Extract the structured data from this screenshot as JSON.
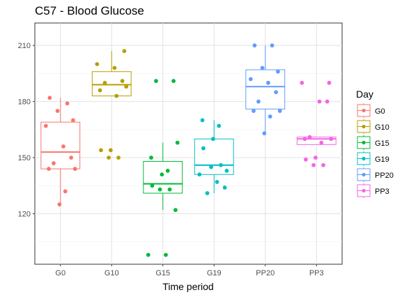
{
  "chart_data": {
    "type": "boxplot",
    "title": "C57 - Blood Glucose",
    "xlabel": "Time period",
    "ylabel": "",
    "categories": [
      "G0",
      "G10",
      "G15",
      "G19",
      "PP20",
      "PP3"
    ],
    "y_ticks": [
      120,
      150,
      180,
      210
    ],
    "ylim": [
      93,
      222
    ],
    "grid": true,
    "legend": {
      "title": "Day",
      "position": "right"
    },
    "series": [
      {
        "name": "G0",
        "color": "#F8766D",
        "box": {
          "min": 125,
          "q1": 144,
          "median": 153,
          "q3": 169,
          "max": 182
        },
        "points": [
          182,
          179,
          175,
          170,
          167,
          156,
          150,
          147,
          144,
          144,
          132,
          125
        ]
      },
      {
        "name": "G10",
        "color": "#B79F00",
        "box": {
          "min": 183,
          "q1": 183,
          "median": 189,
          "q3": 196,
          "max": 207
        },
        "points": [
          207,
          200,
          198,
          191,
          190,
          188,
          186,
          183,
          154,
          154,
          150,
          150
        ]
      },
      {
        "name": "G15",
        "color": "#00BA38",
        "box": {
          "min": 122,
          "q1": 131,
          "median": 136,
          "q3": 148,
          "max": 158
        },
        "points": [
          191,
          191,
          158,
          150,
          143,
          141,
          135,
          133,
          133,
          122,
          98,
          98
        ]
      },
      {
        "name": "G19",
        "color": "#00BFC4",
        "box": {
          "min": 131,
          "q1": 141,
          "median": 146,
          "q3": 160,
          "max": 170
        },
        "points": [
          170,
          167,
          160,
          155,
          146,
          145,
          143,
          141,
          137,
          134,
          131
        ]
      },
      {
        "name": "PP20",
        "color": "#619CFF",
        "box": {
          "min": 163,
          "q1": 176,
          "median": 188,
          "q3": 197,
          "max": 210
        },
        "points": [
          210,
          210,
          198,
          196,
          192,
          190,
          185,
          180,
          175,
          175,
          172,
          163
        ]
      },
      {
        "name": "PP3",
        "color": "#F564E3",
        "box": {
          "min": 157,
          "q1": 157,
          "median": 160,
          "q3": 161,
          "max": 161
        },
        "points": [
          190,
          190,
          180,
          180,
          161,
          160,
          160,
          158,
          150,
          149,
          146,
          146
        ]
      }
    ]
  }
}
